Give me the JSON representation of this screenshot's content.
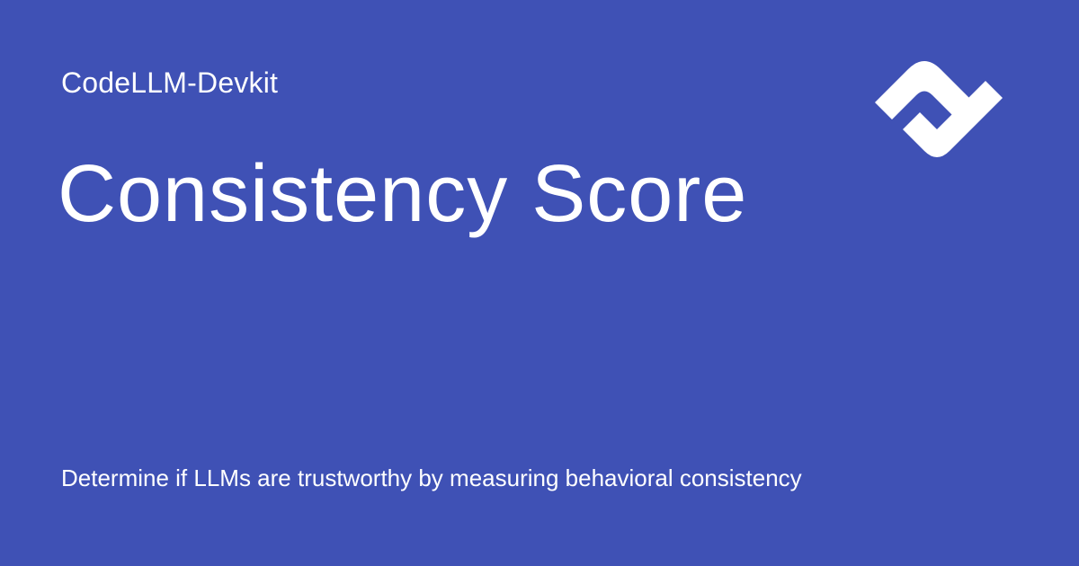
{
  "site": {
    "name": "CodeLLM-Devkit"
  },
  "page": {
    "title": "Consistency Score",
    "description": "Determine if LLMs are trustworthy by measuring behavioral consistency"
  },
  "logo": {
    "icon": "codellm-devkit-logo-icon"
  },
  "colors": {
    "background": "#3f51b5",
    "foreground": "#ffffff"
  }
}
